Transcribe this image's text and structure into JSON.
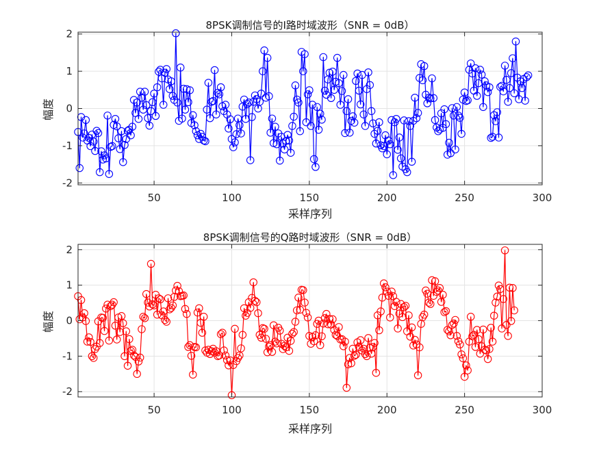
{
  "chart_data": [
    {
      "type": "line",
      "title": "8PSK调制信号的I路时域波形（SNR = 0dB）",
      "xlabel": "采样序列",
      "ylabel": "幅度",
      "xlim": [
        1,
        300
      ],
      "ylim": [
        -2.05,
        2.05
      ],
      "xticks": [
        50,
        100,
        150,
        200,
        250,
        300
      ],
      "yticks": [
        -2,
        -1,
        0,
        1,
        2
      ],
      "grid": true,
      "marker": "circle",
      "color": "#0000ff",
      "series": [
        {
          "name": "I",
          "x_start": 1,
          "x_step": 1,
          "values": [
            -0.63,
            -1.6,
            -0.23,
            -0.78,
            -0.67,
            -0.31,
            -0.86,
            -0.79,
            -1.01,
            -0.7,
            -0.89,
            -1.14,
            -0.6,
            -0.66,
            -1.71,
            -1.15,
            -1.37,
            -1.26,
            -1.34,
            -0.19,
            -1.76,
            -1.03,
            -1.01,
            -0.44,
            -0.28,
            -0.48,
            -0.8,
            -1.09,
            -0.61,
            -1.44,
            -0.98,
            -0.82,
            -0.6,
            -0.57,
            -0.72,
            -0.49,
            0.23,
            -0.12,
            0.16,
            -0.28,
            0.45,
            0.29,
            -0.03,
            0.45,
            0.09,
            -0.26,
            -0.46,
            -0.07,
            0.17,
            0.4,
            -0.2,
            0.57,
            0.99,
            1.04,
            0.81,
            0.1,
            0.96,
            1.06,
            0.78,
            0.52,
            0.73,
            0.34,
            0.23,
            2.02,
            0.16,
            -0.33,
            1.1,
            -0.27,
            0.53,
            -0.03,
            0.52,
            0.17,
            0.49,
            -0.39,
            -0.18,
            -0.45,
            -0.61,
            -0.72,
            -0.82,
            -0.68,
            -0.76,
            -0.86,
            -0.88,
            -0.03,
            0.69,
            -0.26,
            0.18,
            0.2,
            1.03,
            -0.16,
            0.42,
            0.38,
            0.57,
            0.06,
            -0.07,
            0.1,
            -0.16,
            -0.54,
            -0.29,
            -0.82,
            -1.04,
            -0.91,
            -0.69,
            -0.27,
            -0.45,
            -0.67,
            0.05,
            0.24,
            -0.28,
            0.12,
            0.16,
            -1.39,
            -0.23,
            0.18,
            0.35,
            0.25,
            -0.0,
            0.18,
            0.4,
            1.0,
            1.56,
            0.29,
            1.36,
            0.33,
            -0.65,
            -0.27,
            -0.93,
            -0.49,
            -0.96,
            -0.67,
            -1.4,
            -0.76,
            -0.94,
            -1.1,
            -0.87,
            -0.71,
            -0.86,
            -1.19,
            -0.47,
            -0.22,
            0.62,
            0.24,
            0.16,
            -0.61,
            1.52,
            1.0,
            1.46,
            -0.37,
            0.38,
            0.49,
            -0.47,
            0.1,
            -1.36,
            -1.57,
            0.04,
            -0.57,
            -0.14,
            -0.3,
            1.38,
            0.48,
            0.37,
            0.78,
            0.96,
            0.28,
            0.99,
            0.5,
            0.72,
            1.36,
            0.68,
            0.1,
            0.47,
            0.9,
            -0.66,
            -0.07,
            0.25,
            -0.65,
            -0.33,
            -0.21,
            -0.38,
            0.74,
            0.94,
            0.48,
            0.11,
            0.9,
            -0.16,
            -0.47,
            0.52,
            0.97,
            0.63,
            -0.07,
            -0.4,
            -0.68,
            -0.94,
            -0.6,
            -0.37,
            -0.99,
            -1.07,
            -1.01,
            -0.72,
            -1.23,
            -0.86,
            -0.96,
            -0.31,
            -1.79,
            -0.37,
            -0.28,
            -1.11,
            -0.78,
            -1.34,
            -1.56,
            -0.32,
            -1.63,
            -1.71,
            -0.34,
            -0.47,
            -1.43,
            -0.33,
            0.29,
            -0.26,
            -0.12,
            0.82,
            1.19,
            0.76,
            1.14,
            0.37,
            0.14,
            0.29,
            0.27,
            0.81,
            0.28,
            -0.31,
            -0.51,
            -0.61,
            -0.56,
            -0.13,
            -0.52,
            -0.02,
            -0.42,
            -1.24,
            -0.92,
            -1.2,
            0.01,
            -0.19,
            -1.1,
            0.04,
            -0.19,
            -0.25,
            -0.68,
            0.24,
            0.43,
            0.2,
            0.22,
            1.04,
            1.21,
            0.94,
            0.48,
            1.08,
            0.34,
            0.68,
            1.04,
            0.91,
            0.04,
            0.73,
            0.62,
            0.44,
            0.57,
            -0.79,
            -0.76,
            -0.18,
            -0.34,
            -0.1,
            -0.78,
            0.58,
            0.61,
            0.46,
            1.15,
            0.77,
            0.18,
            0.55,
            0.95,
            1.35,
            0.41,
            1.8,
            0.83,
            0.25,
            0.73,
            0.55,
            0.79,
            0.21,
            0.84,
            0.89
          ]
        }
      ]
    },
    {
      "type": "line",
      "title": "8PSK调制信号的Q路时域波形（SNR = 0dB）",
      "xlabel": "采样序列",
      "ylabel": "幅度",
      "xlim": [
        1,
        300
      ],
      "ylim": [
        -2.15,
        2.15
      ],
      "xticks": [
        50,
        100,
        150,
        200,
        250,
        300
      ],
      "yticks": [
        -2,
        -1,
        0,
        1,
        2
      ],
      "grid": true,
      "marker": "circle",
      "color": "#ff0000",
      "series": [
        {
          "name": "Q",
          "x_start": 1,
          "x_step": 1,
          "values": [
            0.69,
            0.04,
            0.58,
            0.09,
            0.21,
            -0.01,
            -0.59,
            -0.47,
            -0.6,
            -1.0,
            -1.05,
            -0.8,
            -0.73,
            -0.02,
            -0.63,
            0.09,
            0.08,
            -0.29,
            0.34,
            0.45,
            -0.56,
            0.41,
            0.45,
            0.52,
            -0.14,
            -0.53,
            0.09,
            -0.32,
            0.13,
            -0.07,
            -1.0,
            -0.3,
            -1.27,
            -0.52,
            -0.85,
            -0.82,
            -0.98,
            -1.02,
            -1.5,
            -1.15,
            -1.04,
            -0.24,
            0.11,
            0.07,
            0.75,
            0.51,
            0.4,
            1.6,
            0.46,
            0.43,
            0.73,
            0.17,
            0.63,
            0.6,
            0.15,
            0.26,
            0.02,
            -0.03,
            0.63,
            0.32,
            0.36,
            0.43,
            0.67,
            0.85,
            0.98,
            0.83,
            0.69,
            0.7,
            0.71,
            0.33,
            0.19,
            -0.74,
            -0.69,
            -0.99,
            -1.52,
            -0.74,
            -0.75,
            0.23,
            0.35,
            -0.06,
            -0.34,
            0.11,
            -0.84,
            -0.9,
            -0.82,
            -0.94,
            -0.86,
            -0.79,
            -0.9,
            -0.86,
            -1.0,
            -0.98,
            -0.38,
            -0.34,
            -0.84,
            -0.98,
            -1.11,
            -1.26,
            -1.12,
            -2.1,
            -1.25,
            -0.23,
            -1.14,
            -1.05,
            -0.98,
            -0.78,
            -0.4,
            0.35,
            0.14,
            0.22,
            0.52,
            0.36,
            0.64,
            1.08,
            0.56,
            0.52,
            0.21,
            -0.4,
            -0.48,
            -0.21,
            -0.23,
            -0.51,
            -0.89,
            -0.73,
            -0.69,
            -0.88,
            -0.13,
            -0.59,
            -0.64,
            -0.2,
            -0.28,
            -0.65,
            -0.8,
            -0.71,
            -0.75,
            -0.48,
            -0.85,
            -0.57,
            -0.37,
            -0.32,
            -0.03,
            0.29,
            0.65,
            0.31,
            0.87,
            0.86,
            0.51,
            0.22,
            0.09,
            -0.43,
            -0.65,
            -0.46,
            -0.58,
            -0.41,
            -0.09,
            0.0,
            -0.69,
            -0.44,
            -0.08,
            0.07,
            0.19,
            -0.1,
            0.05,
            -0.11,
            0.04,
            -0.26,
            -0.4,
            -0.43,
            -0.18,
            -0.53,
            -0.52,
            -0.72,
            -0.59,
            -1.89,
            -1.23,
            -1.05,
            -1.2,
            -0.79,
            -0.99,
            -0.96,
            -0.61,
            -0.74,
            -0.55,
            -0.84,
            -0.79,
            -0.94,
            -1.0,
            -0.49,
            -0.76,
            -0.93,
            -0.74,
            -0.63,
            -1.47,
            0.15,
            -0.27,
            0.26,
            0.65,
            1.05,
            0.94,
            0.82,
            0.7,
            0.09,
            0.82,
            0.69,
            0.41,
            0.53,
            -0.22,
            0.2,
            0.47,
            0.1,
            0.38,
            0.42,
            -0.3,
            0.15,
            -0.45,
            -0.19,
            -0.7,
            -0.54,
            -0.67,
            -1.54,
            -0.75,
            -0.09,
            0.1,
            0.17,
            0.85,
            0.76,
            0.51,
            0.47,
            1.14,
            0.7,
            1.11,
            0.81,
            0.85,
            0.92,
            0.53,
            0.73,
            0.24,
            0.27,
            -0.26,
            -0.3,
            -0.41,
            -0.12,
            -0.08,
            0.02,
            -0.43,
            -0.58,
            -0.67,
            -0.95,
            -1.06,
            -1.58,
            -1.26,
            -1.4,
            -0.59,
            0.11,
            -0.44,
            -0.4,
            -0.74,
            -0.26,
            -0.52,
            -0.93,
            -0.72,
            -0.25,
            -0.82,
            -0.84,
            -1.08,
            -0.8,
            -0.2,
            -0.59,
            0.14,
            0.51,
            0.68,
            0.99,
            0.89,
            -0.22,
            0.61,
            1.98,
            -0.12,
            -0.43,
            0.93,
            -0.01,
            0.92,
            0.29
          ]
        }
      ]
    }
  ]
}
